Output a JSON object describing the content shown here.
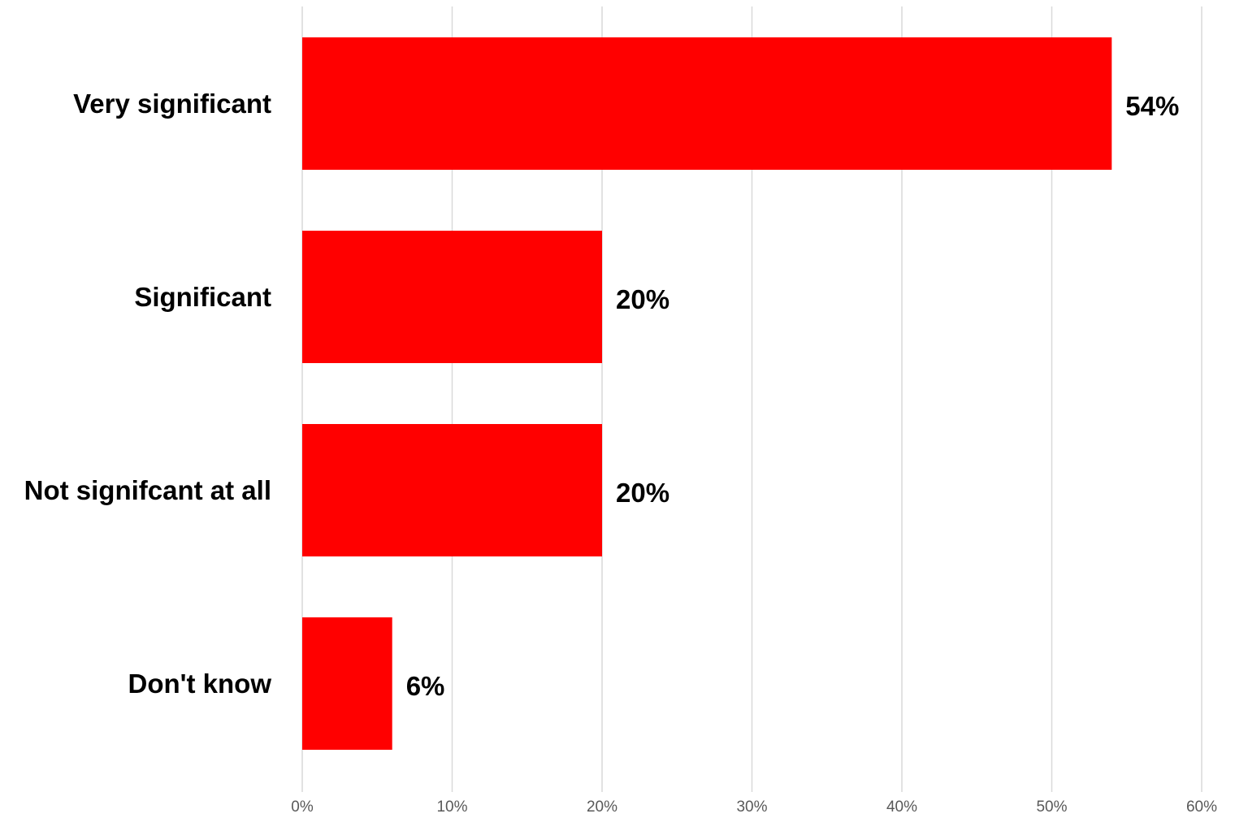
{
  "chart_data": {
    "type": "bar",
    "orientation": "horizontal",
    "categories": [
      "Very significant",
      "Significant",
      "Not signifcant at all",
      "Don't know"
    ],
    "values": [
      54,
      20,
      20,
      6
    ],
    "data_labels": [
      "54%",
      "20%",
      "20%",
      "6%"
    ],
    "title": "",
    "xlabel": "",
    "ylabel": "",
    "xlim": [
      0,
      60
    ],
    "x_ticks": [
      0,
      10,
      20,
      30,
      40,
      50,
      60
    ],
    "x_tick_labels": [
      "0%",
      "10%",
      "20%",
      "30%",
      "40%",
      "50%",
      "60%"
    ],
    "grid": true,
    "legend": "none",
    "colors": {
      "bar": "#ff0000",
      "grid": "#d9d9d9",
      "tick_text": "#595959",
      "label_text": "#000000"
    }
  }
}
